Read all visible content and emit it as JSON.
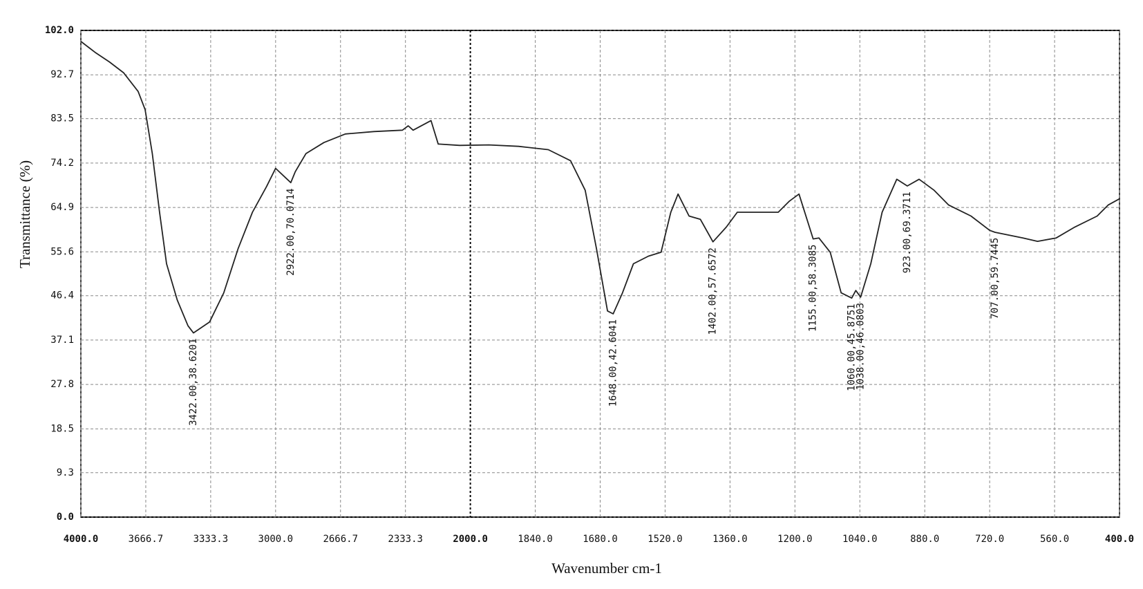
{
  "chart_data": {
    "type": "line",
    "x_label": "Wavenumber  cm-1",
    "y_label": "Transmittance (%)",
    "xlim": [
      4000,
      400
    ],
    "ylim": [
      0,
      102
    ],
    "xticks": [
      {
        "value": 4000,
        "label": "4000.0"
      },
      3666.7,
      3333.3,
      {
        "value": 3000,
        "label": "3000.0"
      },
      2666.7,
      2333.3,
      {
        "value": 2000,
        "label": "2000.0"
      },
      {
        "value": 1840,
        "label": "1840.0"
      },
      {
        "value": 1680,
        "label": "1680.0"
      },
      {
        "value": 1520,
        "label": "1520.0"
      },
      {
        "value": 1360,
        "label": "1360.0"
      },
      {
        "value": 1200,
        "label": "1200.0"
      },
      {
        "value": 1040,
        "label": "1040.0"
      },
      {
        "value": 880,
        "label": "880.0"
      },
      {
        "value": 720,
        "label": "720.0"
      },
      {
        "value": 560,
        "label": "560.0"
      },
      {
        "value": 400,
        "label": "400.0"
      }
    ],
    "yticks": [
      {
        "value": 0,
        "label": "0.0"
      },
      9.3,
      18.5,
      27.8,
      37.1,
      46.4,
      55.6,
      64.9,
      74.2,
      83.5,
      92.7,
      {
        "value": 102,
        "label": "102.0"
      }
    ],
    "grid": true,
    "color": "#222222",
    "x": [
      4000,
      3927,
      3853,
      3780,
      3706,
      3670,
      3633,
      3596,
      3560,
      3505,
      3450,
      3422,
      3339,
      3266,
      3193,
      3119,
      3046,
      3000,
      2922,
      2899,
      2844,
      2752,
      2642,
      2495,
      2349,
      2319,
      2294,
      2202,
      2165,
      2055,
      1954,
      1881,
      1808,
      1753,
      1717,
      1689,
      1662,
      1648,
      1625,
      1598,
      1561,
      1530,
      1506,
      1488,
      1461,
      1433,
      1402,
      1369,
      1342,
      1296,
      1241,
      1214,
      1190,
      1155,
      1141,
      1113,
      1086,
      1060,
      1050,
      1038,
      1013,
      985,
      949,
      923,
      894,
      857,
      821,
      766,
      720,
      707,
      638,
      602,
      556,
      510,
      455,
      428,
      400
    ],
    "values": [
      99.7,
      97.4,
      95.4,
      93.1,
      89.2,
      85.4,
      76.2,
      63.9,
      53.1,
      45.5,
      40.1,
      38.6,
      40.9,
      47.0,
      56.2,
      63.9,
      69.3,
      73.1,
      70.1,
      72.4,
      76.2,
      78.5,
      80.3,
      80.8,
      81.1,
      82.0,
      81.1,
      83.1,
      78.2,
      77.9,
      78.0,
      77.7,
      77.0,
      74.7,
      68.5,
      56.2,
      43.2,
      42.6,
      47.0,
      53.1,
      54.7,
      55.5,
      63.9,
      67.7,
      63.1,
      62.4,
      57.7,
      60.8,
      63.9,
      63.9,
      63.9,
      66.2,
      67.7,
      58.3,
      58.5,
      55.5,
      47.0,
      45.9,
      47.5,
      46.1,
      53.1,
      63.9,
      70.8,
      69.4,
      70.8,
      68.5,
      65.4,
      63.1,
      60.1,
      59.7,
      58.5,
      57.8,
      58.5,
      60.8,
      63.1,
      65.4,
      66.7
    ],
    "annotations": [
      {
        "x": 3422,
        "y": 38.6201,
        "label": "3422.00,38.6201"
      },
      {
        "x": 2922,
        "y": 70.0714,
        "label": "2922.00,70.0714"
      },
      {
        "x": 1648,
        "y": 42.6041,
        "label": "1648.00,42.6041"
      },
      {
        "x": 1402,
        "y": 57.6572,
        "label": "1402.00,57.6572"
      },
      {
        "x": 1155,
        "y": 58.3085,
        "label": "1155.00,58.3085"
      },
      {
        "x": 1060,
        "y": 45.8751,
        "label": "1060.00,45.8751"
      },
      {
        "x": 1038,
        "y": 46.0803,
        "label": "1038.00,46.0803"
      },
      {
        "x": 923,
        "y": 69.3711,
        "label": "923.00,69.3711"
      },
      {
        "x": 707,
        "y": 59.7445,
        "label": "707.00,59.7445"
      }
    ]
  }
}
